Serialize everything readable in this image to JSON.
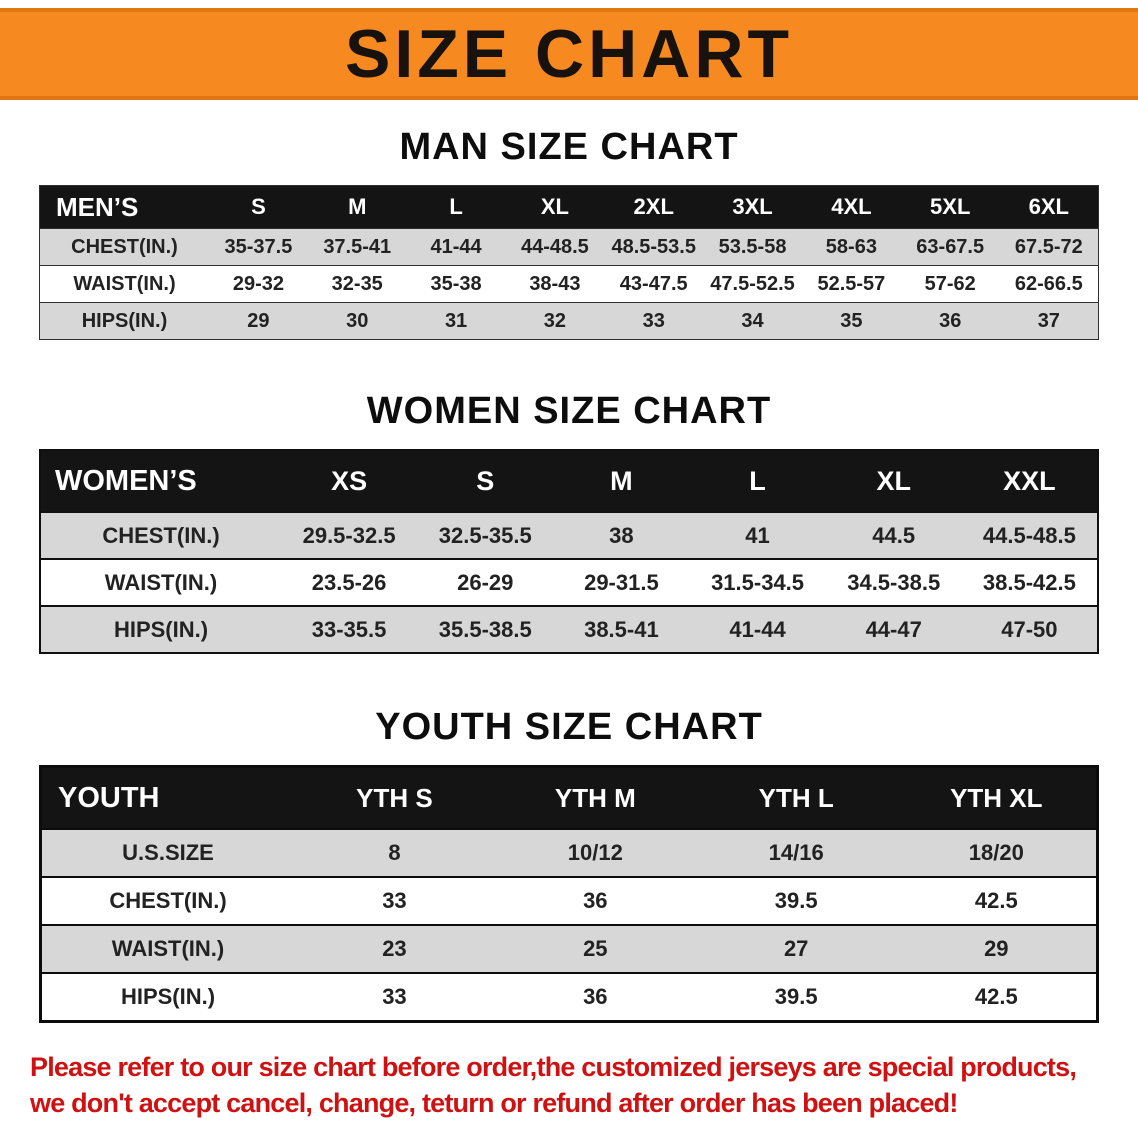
{
  "banner": {
    "title": "SIZE CHART",
    "background_color": "#f6891f"
  },
  "chart_data": [
    {
      "type": "table",
      "id": "men",
      "heading": "MAN SIZE CHART",
      "label": "MEN’S",
      "columns": [
        "S",
        "M",
        "L",
        "XL",
        "2XL",
        "3XL",
        "4XL",
        "5XL",
        "6XL"
      ],
      "rows": [
        {
          "label": "CHEST(IN.)",
          "values": [
            "35-37.5",
            "37.5-41",
            "41-44",
            "44-48.5",
            "48.5-53.5",
            "53.5-58",
            "58-63",
            "63-67.5",
            "67.5-72"
          ]
        },
        {
          "label": "WAIST(IN.)",
          "values": [
            "29-32",
            "32-35",
            "35-38",
            "38-43",
            "43-47.5",
            "47.5-52.5",
            "52.5-57",
            "57-62",
            "62-66.5"
          ]
        },
        {
          "label": "HIPS(IN.)",
          "values": [
            "29",
            "30",
            "31",
            "32",
            "33",
            "34",
            "35",
            "36",
            "37"
          ]
        }
      ]
    },
    {
      "type": "table",
      "id": "women",
      "heading": "WOMEN SIZE CHART",
      "label": "WOMEN’S",
      "columns": [
        "XS",
        "S",
        "M",
        "L",
        "XL",
        "XXL"
      ],
      "rows": [
        {
          "label": "CHEST(IN.)",
          "values": [
            "29.5-32.5",
            "32.5-35.5",
            "38",
            "41",
            "44.5",
            "44.5-48.5"
          ]
        },
        {
          "label": "WAIST(IN.)",
          "values": [
            "23.5-26",
            "26-29",
            "29-31.5",
            "31.5-34.5",
            "34.5-38.5",
            "38.5-42.5"
          ]
        },
        {
          "label": "HIPS(IN.)",
          "values": [
            "33-35.5",
            "35.5-38.5",
            "38.5-41",
            "41-44",
            "44-47",
            "47-50"
          ]
        }
      ]
    },
    {
      "type": "table",
      "id": "youth",
      "heading": "YOUTH SIZE CHART",
      "label": "YOUTH",
      "columns": [
        "YTH S",
        "YTH M",
        "YTH L",
        "YTH XL"
      ],
      "rows": [
        {
          "label": "U.S.SIZE",
          "values": [
            "8",
            "10/12",
            "14/16",
            "18/20"
          ]
        },
        {
          "label": "CHEST(IN.)",
          "values": [
            "33",
            "36",
            "39.5",
            "42.5"
          ]
        },
        {
          "label": "WAIST(IN.)",
          "values": [
            "23",
            "25",
            "27",
            "29"
          ]
        },
        {
          "label": "HIPS(IN.)",
          "values": [
            "33",
            "36",
            "39.5",
            "42.5"
          ]
        }
      ]
    }
  ],
  "note": {
    "color": "#cf1111",
    "lines": [
      "Please refer to our size chart before order,the customized jerseys are special products,",
      "we don't accept cancel, change, teturn or refund after order has been placed!"
    ]
  },
  "colors": {
    "row_shade": "#d7d7d7",
    "header_black": "#141414"
  }
}
